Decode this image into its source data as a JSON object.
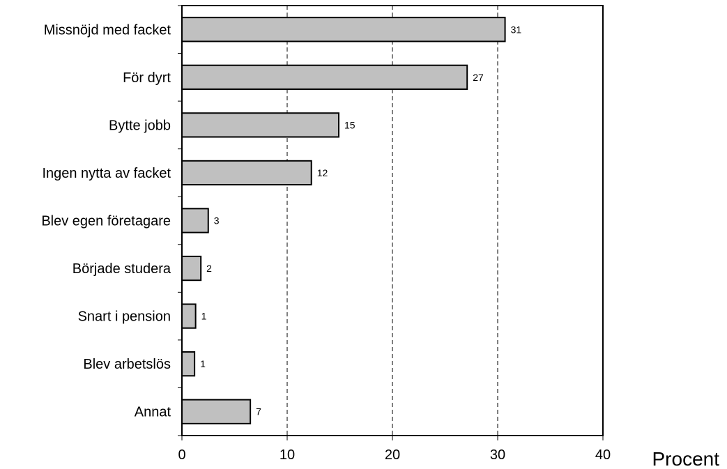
{
  "chart_data": {
    "type": "bar",
    "orientation": "horizontal",
    "categories": [
      "Missnöjd med facket",
      "För dyrt",
      "Bytte jobb",
      "Ingen nytta av facket",
      "Blev egen företagare",
      "Började studera",
      "Snart i pension",
      "Blev arbetslös",
      "Annat"
    ],
    "values": [
      30.7,
      27.1,
      14.9,
      12.3,
      2.5,
      1.8,
      1.3,
      1.2,
      6.5
    ],
    "data_labels": [
      "31",
      "27",
      "15",
      "12",
      "3",
      "2",
      "1",
      "1",
      "7"
    ],
    "xlabel": "Procent",
    "xlim": [
      0,
      40
    ],
    "x_ticks": [
      0,
      10,
      20,
      30,
      40
    ],
    "x_tick_labels": [
      "0",
      "10",
      "20",
      "30",
      "40"
    ],
    "grid": "vertical dashed",
    "bar_color": "#c0c0c0",
    "bar_edge_color": "#000000"
  }
}
